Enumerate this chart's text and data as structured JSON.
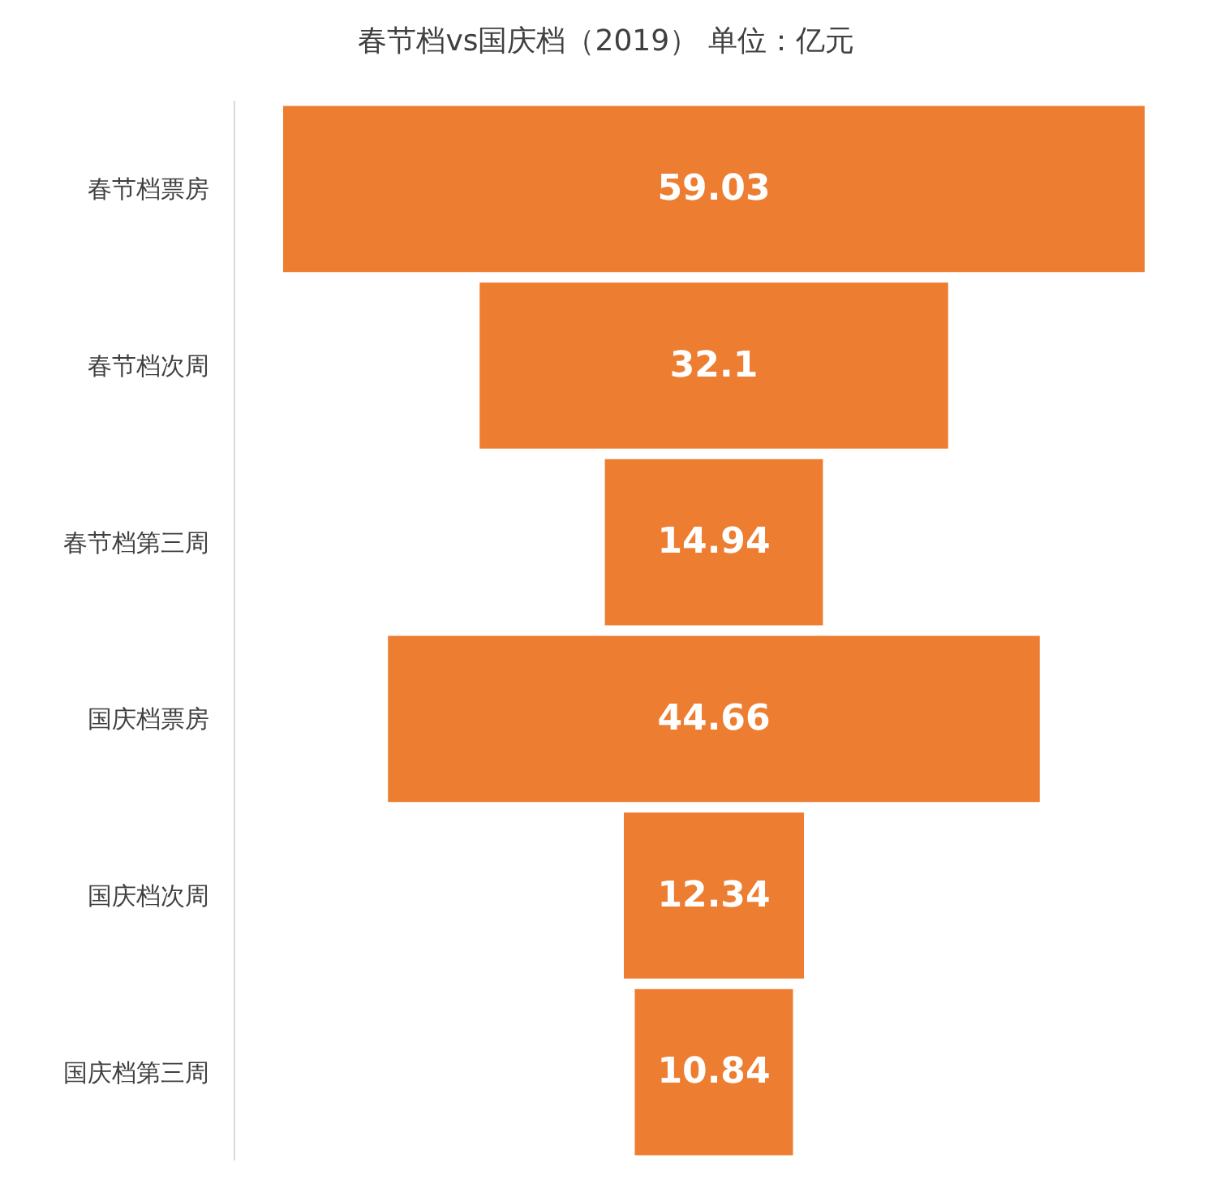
{
  "chart_data": {
    "type": "other",
    "title": "春节档vs国庆档（2019） 单位：亿元",
    "categories": [
      "春节档票房",
      "春节档次周",
      "春节档第三周",
      "国庆档票房",
      "国庆档次周",
      "国庆档第三周"
    ],
    "values": [
      59.03,
      32.1,
      14.94,
      44.66,
      12.34,
      10.84
    ],
    "color": "#ed7d31",
    "data_labels": true
  }
}
